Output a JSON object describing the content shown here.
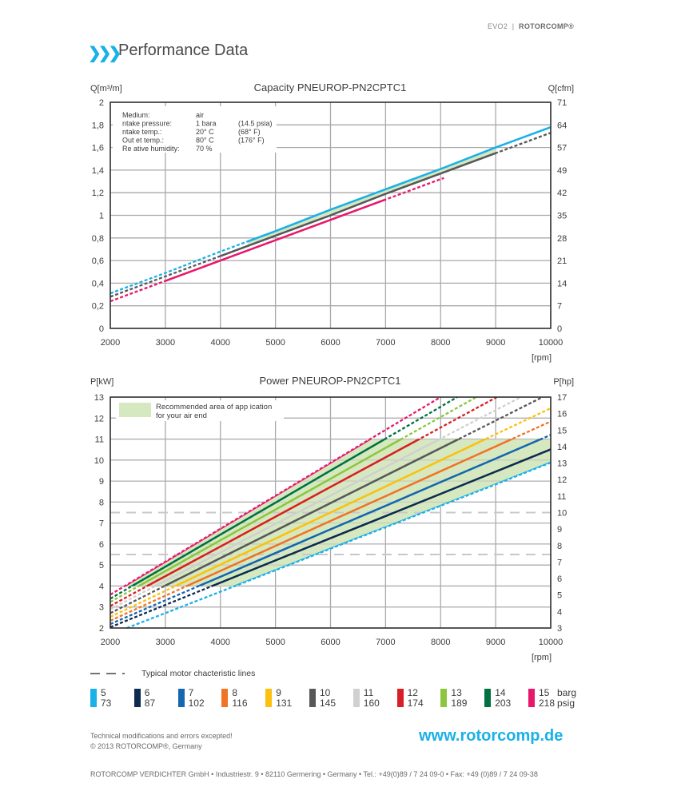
{
  "header": {
    "product": "EVO2",
    "separator": "|",
    "brand": "ROTORCOMP®"
  },
  "page_title": "Performance Data",
  "chevron_icon": "triple-chevron-right",
  "chart_data": [
    {
      "type": "line",
      "title": "Capacity PNEUROP-PN2CPTC1",
      "ylabel": "Q[m³/m]",
      "ylabel_right": "Q[cfm]",
      "xlabel": "[rpm]",
      "xlim": [
        2000,
        10000
      ],
      "ylim": [
        0,
        2
      ],
      "grid": true,
      "x_ticks": [
        "2000",
        "3000",
        "4000",
        "5000",
        "6000",
        "7000",
        "8000",
        "9000",
        "10000"
      ],
      "y_ticks": [
        "0",
        "0,2",
        "0,4",
        "0,6",
        "0,8",
        "1",
        "1,2",
        "1,4",
        "1,6",
        "1,8",
        "2"
      ],
      "y_right_ticks": [
        "0",
        "7",
        "14",
        "21",
        "28",
        "35",
        "42",
        "49",
        "57",
        "64",
        "71"
      ],
      "info_box": [
        [
          "Medium:",
          "air",
          ""
        ],
        [
          "ntake pressure:",
          "1  bara",
          "(14.5  psia)"
        ],
        [
          "ntake temp.:",
          "20° C",
          "(68°   F)"
        ],
        [
          "Out et temp.:",
          "80° C",
          "(176°  F)"
        ],
        [
          "Re ative humidity:",
          "70  %",
          ""
        ]
      ],
      "band": {
        "color": "#d6e8c0",
        "x_range": [
          4500,
          9000
        ]
      },
      "series": [
        {
          "color": "#1ab0e8",
          "x": [
            2000,
            3000,
            4000,
            5000,
            6000,
            7000,
            8000,
            9000,
            10000
          ],
          "values": [
            0.31,
            0.49,
            0.68,
            0.86,
            1.05,
            1.23,
            1.41,
            1.6,
            1.78
          ],
          "solid_range": [
            4500,
            10000
          ]
        },
        {
          "color": "#58585a",
          "x": [
            2000,
            3000,
            4000,
            5000,
            6000,
            7000,
            8000,
            9000,
            10000
          ],
          "values": [
            0.28,
            0.46,
            0.64,
            0.82,
            1.0,
            1.19,
            1.37,
            1.55,
            1.73
          ],
          "solid_range": [
            4000,
            9000
          ]
        },
        {
          "color": "#e8176b",
          "x": [
            2000,
            3000,
            4000,
            5000,
            6000,
            7000,
            8000,
            8060
          ],
          "values": [
            0.24,
            0.42,
            0.6,
            0.78,
            0.96,
            1.14,
            1.32,
            1.33
          ],
          "solid_range": [
            3000,
            7000
          ]
        }
      ]
    },
    {
      "type": "line",
      "title": "Power PNEUROP-PN2CPTC1",
      "ylabel": "P[kW]",
      "ylabel_right": "P[hp]",
      "xlabel": "[rpm]",
      "xlim": [
        2000,
        10000
      ],
      "ylim": [
        2,
        13
      ],
      "grid": true,
      "x_ticks": [
        "2000",
        "3000",
        "4000",
        "5000",
        "6000",
        "7000",
        "8000",
        "9000",
        "10000"
      ],
      "y_ticks": [
        "2",
        "3",
        "4",
        "5",
        "6",
        "7",
        "8",
        "9",
        "10",
        "11",
        "12",
        "13"
      ],
      "y_right_ticks": [
        "3",
        "4",
        "5",
        "6",
        "7",
        "8",
        "9",
        "10",
        "11",
        "12",
        "13",
        "14",
        "15",
        "16",
        "17"
      ],
      "recommended_area": {
        "label_line1": "Recommended area of app ication",
        "label_line2": "for  your air end",
        "color": "#d6e8c0",
        "polygon": [
          [
            2260,
            4
          ],
          [
            6720,
            11
          ],
          [
            10000,
            11
          ],
          [
            10000,
            9.88
          ],
          [
            4255,
            4
          ]
        ]
      },
      "motor_lines": {
        "label": "Typical motor chacteristic lines",
        "values": [
          5.5,
          7.5
        ],
        "color": "#c8c8cc"
      },
      "series": [
        {
          "barg": "5",
          "psig": "73",
          "color": "#1ab0e8",
          "x": [
            2300,
            3000,
            4000,
            5000,
            6000,
            7000,
            8000,
            9000,
            10000
          ],
          "values": [
            2.0,
            2.71,
            3.73,
            4.75,
            5.78,
            6.8,
            7.82,
            8.84,
            9.88
          ]
        },
        {
          "barg": "6",
          "psig": "87",
          "color": "#0d2b4e",
          "x": [
            2000,
            3000,
            4000,
            5000,
            6000,
            7000,
            8000,
            9000,
            10000
          ],
          "values": [
            2.04,
            3.1,
            4.16,
            5.22,
            6.28,
            7.33,
            8.39,
            9.45,
            10.51
          ]
        },
        {
          "barg": "7",
          "psig": "102",
          "color": "#1466b0",
          "x": [
            2000,
            3000,
            4000,
            5000,
            6000,
            7000,
            8000,
            9000,
            10000
          ],
          "values": [
            2.19,
            3.32,
            4.44,
            5.57,
            6.7,
            7.82,
            8.95,
            10.07,
            11.2
          ]
        },
        {
          "barg": "8",
          "psig": "116",
          "color": "#f07326",
          "x": [
            2000,
            3000,
            4000,
            5000,
            6000,
            7000,
            8000,
            9000,
            10000
          ],
          "values": [
            2.35,
            3.54,
            4.72,
            5.91,
            7.1,
            8.28,
            9.47,
            10.65,
            11.84
          ]
        },
        {
          "barg": "9",
          "psig": "131",
          "color": "#fcc00e",
          "x": [
            2000,
            3000,
            4000,
            5000,
            6000,
            7000,
            8000,
            9000,
            10000
          ],
          "values": [
            2.53,
            3.77,
            5.02,
            6.26,
            7.5,
            8.74,
            9.99,
            11.23,
            12.47
          ]
        },
        {
          "barg": "10",
          "psig": "145",
          "color": "#58585a",
          "x": [
            2000,
            3000,
            4000,
            5000,
            6000,
            7000,
            8000,
            9000,
            9850
          ],
          "values": [
            2.71,
            4.02,
            5.33,
            6.64,
            7.95,
            9.26,
            10.57,
            11.88,
            13.0
          ]
        },
        {
          "barg": "11",
          "psig": "160",
          "color": "#d0d0d2",
          "x": [
            2000,
            3000,
            4000,
            5000,
            6000,
            7000,
            8000,
            9000,
            9460
          ],
          "values": [
            2.89,
            4.25,
            5.6,
            6.96,
            8.31,
            9.67,
            11.02,
            12.38,
            13.0
          ]
        },
        {
          "barg": "12",
          "psig": "174",
          "color": "#d91f26",
          "x": [
            2000,
            3000,
            4000,
            5000,
            6000,
            7000,
            8000,
            9000,
            9020
          ],
          "values": [
            3.05,
            4.47,
            5.88,
            7.3,
            8.72,
            10.13,
            11.55,
            12.97,
            13.0
          ]
        },
        {
          "barg": "13",
          "psig": "189",
          "color": "#8cc63f",
          "x": [
            2000,
            3000,
            4000,
            5000,
            6000,
            7000,
            8000,
            8650
          ],
          "values": [
            3.24,
            4.71,
            6.18,
            7.64,
            9.11,
            10.58,
            12.05,
            13.0
          ]
        },
        {
          "barg": "14",
          "psig": "203",
          "color": "#007140",
          "x": [
            2000,
            3000,
            4000,
            5000,
            6000,
            7000,
            8000,
            8300
          ],
          "values": [
            3.4,
            4.92,
            6.45,
            7.97,
            9.5,
            11.02,
            12.54,
            13.0
          ]
        },
        {
          "barg": "15",
          "psig": "218",
          "color": "#e8176b",
          "x": [
            2000,
            3000,
            4000,
            5000,
            6000,
            7000,
            8000
          ],
          "values": [
            3.59,
            5.16,
            6.73,
            8.3,
            9.87,
            11.44,
            13.0
          ]
        }
      ]
    }
  ],
  "legend": {
    "unit_top": "barg",
    "unit_bottom": "psig"
  },
  "footer": {
    "disclaimer": "Technical modifications and errors excepted!",
    "copyright": "© 2013 ROTORCOMP®, Germany",
    "website": "www.rotorcomp.de",
    "address": "ROTORCOMP VERDICHTER GmbH • Industriestr. 9 • 82110 Germering • Germany • Tel.: +49(0)89 / 7 24 09-0 • Fax: +49 (0)89 / 7 24 09-38"
  }
}
